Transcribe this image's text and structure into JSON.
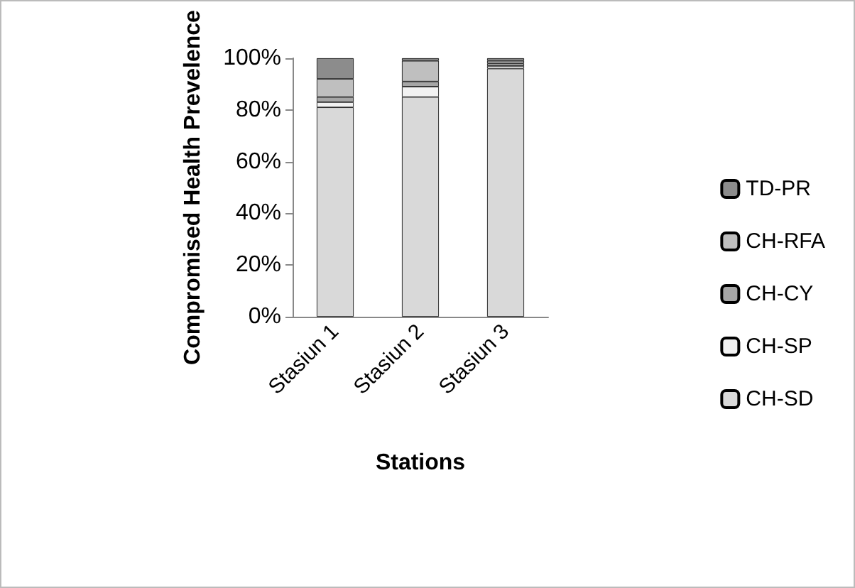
{
  "chart_data": {
    "type": "bar",
    "stacked": true,
    "xlabel": "Stations",
    "ylabel": "Compromised Health Prevelence",
    "categories": [
      "Stasiun 1",
      "Stasiun 2",
      "Stasiun 3"
    ],
    "series": [
      {
        "name": "CH-SD",
        "color": "#d9d9d9",
        "values": [
          81,
          85,
          96
        ]
      },
      {
        "name": "CH-SP",
        "color": "#f2f2f2",
        "values": [
          2,
          4,
          1
        ]
      },
      {
        "name": "CH-CY",
        "color": "#a6a6a6",
        "values": [
          2,
          2,
          1
        ]
      },
      {
        "name": "CH-RFA",
        "color": "#bfbfbf",
        "values": [
          7,
          8,
          1
        ]
      },
      {
        "name": "TD-PR",
        "color": "#8c8c8c",
        "values": [
          8,
          1,
          1
        ]
      }
    ],
    "ylim": [
      0,
      100
    ],
    "yticks": [
      {
        "value": 0,
        "label": "0%"
      },
      {
        "value": 20,
        "label": "20%"
      },
      {
        "value": 40,
        "label": "40%"
      },
      {
        "value": 60,
        "label": "60%"
      },
      {
        "value": 80,
        "label": "80%"
      },
      {
        "value": 100,
        "label": "100%"
      }
    ],
    "grid": false,
    "legend": "right"
  }
}
